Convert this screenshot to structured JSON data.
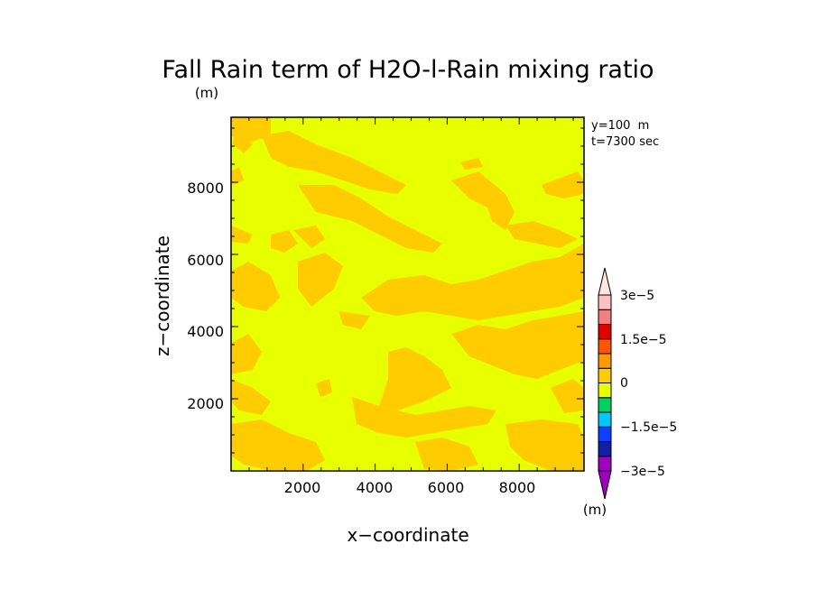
{
  "chart_data": {
    "type": "heatmap",
    "title": "Fall Rain term of H2O-l-Rain mixing ratio",
    "units_label": "(m)",
    "xlabel": "x−coordinate",
    "ylabel": "z−coordinate",
    "xlim": [
      0,
      9800
    ],
    "ylim": [
      0,
      9800
    ],
    "x_ticks": [
      2000,
      4000,
      6000,
      8000
    ],
    "y_ticks": [
      2000,
      4000,
      6000,
      8000
    ],
    "x_tick_labels": [
      "2000",
      "4000",
      "6000",
      "8000"
    ],
    "y_tick_labels": [
      "2000",
      "4000",
      "6000",
      "8000"
    ],
    "annotations": [
      "y=100  m",
      "t=7300 sec"
    ],
    "field": {
      "background_level_color": "#e8ff00",
      "secondary_level_color": "#ffcc00",
      "description_values": "field near 0; slightly positive patches (0 to 7.5e-6) scattered"
    },
    "colorbar": {
      "colors": [
        "#a000c0",
        "#1020a0",
        "#1040ff",
        "#00c8ff",
        "#00d060",
        "#e8ff00",
        "#ffcc00",
        "#ff9900",
        "#ff5500",
        "#e00000",
        "#f08080",
        "#ffc0c0"
      ],
      "top_triangle_color": "#ffe4e4",
      "bottom_triangle_color": "#a000c0",
      "labels": [
        "3e−5",
        "1.5e−5",
        "0",
        "−1.5e−5",
        "−3e−5"
      ],
      "label_values": [
        3e-05,
        1.5e-05,
        0,
        -1.5e-05,
        -3e-05
      ],
      "units_label": "(m)"
    }
  }
}
